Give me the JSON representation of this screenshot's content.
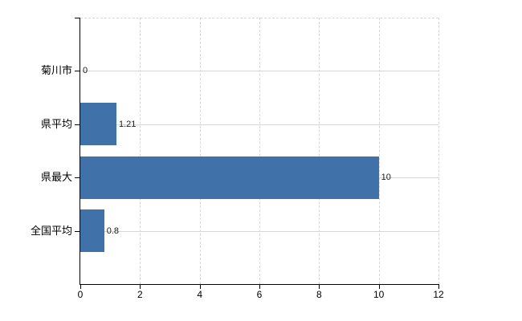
{
  "chart": {
    "bar_color": "#4171a9",
    "axis_color": "#000000",
    "gridline_color": "#d5d7d5",
    "background_color": "#ffffff"
  },
  "chart_data": {
    "type": "bar",
    "orientation": "horizontal",
    "title": "",
    "xlabel": "",
    "ylabel": "",
    "categories": [
      "菊川市",
      "県平均",
      "県最大",
      "全国平均"
    ],
    "values": [
      0,
      1.21,
      10,
      0.8
    ],
    "value_labels": [
      "0",
      "1.21",
      "10",
      "0.8"
    ],
    "xlim": [
      0,
      12
    ],
    "x_ticks": [
      0,
      2,
      4,
      6,
      8,
      10,
      12
    ],
    "x_tick_labels": [
      "0",
      "2",
      "4",
      "6",
      "8",
      "10",
      "12"
    ],
    "grid": true,
    "legend": false
  }
}
